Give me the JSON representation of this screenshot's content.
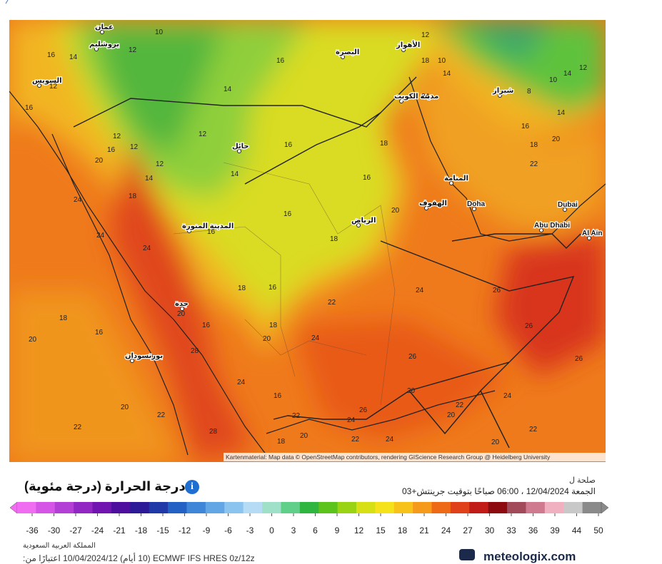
{
  "map": {
    "labels": [
      "عمان",
      "يروشليم",
      "السويس",
      "حائل",
      "المدينة المنورة",
      "الرياض",
      "مدينة الكويت",
      "البصرة",
      "الأهواز",
      "شيراز",
      "المنامة",
      "الهفوف",
      "Doha",
      "Dubai",
      "Abu Dhabi",
      "Al Ain",
      "جدة",
      "بورتسودان",
      "10",
      "12",
      "14",
      "16",
      "12",
      "16",
      "12",
      "16",
      "12",
      "20",
      "12",
      "14",
      "16",
      "14",
      "12",
      "16",
      "14",
      "16",
      "18",
      "16",
      "20",
      "18",
      "24",
      "24",
      "18",
      "24",
      "16",
      "18",
      "16",
      "22",
      "24",
      "26",
      "26",
      "18",
      "16",
      "20",
      "20",
      "16",
      "18",
      "20",
      "24",
      "26",
      "28",
      "20",
      "24",
      "16",
      "20",
      "22",
      "22",
      "28",
      "22",
      "24",
      "26",
      "22",
      "20",
      "24",
      "18",
      "20",
      "22",
      "24",
      "20",
      "22",
      "26",
      "20",
      "18",
      "22",
      "16",
      "14",
      "10",
      "8",
      "12",
      "14",
      "12",
      "18",
      "10",
      "14",
      "24"
    ],
    "attribution": "Kartenmaterial: Map data © OpenStreetMap contributors, rendering GIScience Research Group @ Heidelberg University"
  },
  "header": {
    "title": "درجة الحرارة (درجة مئوية)",
    "valid_label": "صلحة ل",
    "valid_time": "الجمعة 12/04/2024 ، 06:00 صباحًا بتوقيت جرينتش+03"
  },
  "scale": {
    "labels": [
      "-36",
      "-30",
      "-27",
      "-24",
      "-21",
      "-18",
      "-15",
      "-12",
      "-9",
      "-6",
      "-3",
      "0",
      "3",
      "6",
      "9",
      "12",
      "15",
      "18",
      "21",
      "24",
      "27",
      "30",
      "33",
      "36",
      "39",
      "44",
      "50"
    ],
    "colors": [
      "#f06cf0",
      "#d455e6",
      "#b33fd6",
      "#9227c4",
      "#7214b0",
      "#4f0f9e",
      "#2c1a96",
      "#1f3aa8",
      "#2461c4",
      "#3f86d8",
      "#63a6e6",
      "#8cc4f0",
      "#b6dcf5",
      "#9fe0c8",
      "#5fcf8a",
      "#2fb540",
      "#5cc21c",
      "#9ad214",
      "#d6e014",
      "#f5e21a",
      "#f7c21a",
      "#f59a1a",
      "#ef6a16",
      "#e0401a",
      "#c21c18",
      "#8c0a10",
      "#a24a5a",
      "#d07a90",
      "#f0b0c0",
      "#c8c8c8",
      "#8a8a8a"
    ]
  },
  "footer": {
    "region": "المملكة العربية السعودية",
    "run": "ECMWF IFS HRES 0z/12z (10 أيام) 10/04/2024/12 اعتبارًا من:",
    "logo": "meteologix.com"
  }
}
